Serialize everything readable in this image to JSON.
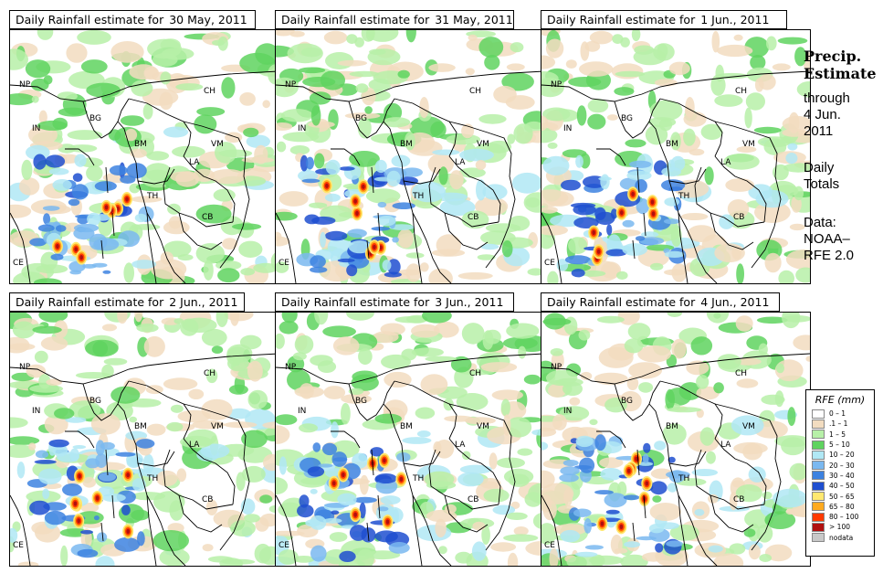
{
  "panels": [
    {
      "title": "Daily Rainfall estimate for",
      "date": "30 May, 2011"
    },
    {
      "title": "Daily Rainfall estimate for",
      "date": "31 May, 2011"
    },
    {
      "title": "Daily Rainfall estimate for",
      "date": "1 Jun., 2011"
    },
    {
      "title": "Daily Rainfall estimate for",
      "date": "2 Jun., 2011"
    },
    {
      "title": "Daily Rainfall estimate for",
      "date": "3 Jun., 2011"
    },
    {
      "title": "Daily Rainfall estimate for",
      "date": "4 Jun., 2011"
    }
  ],
  "country_labels": {
    "NP": "NP",
    "CH": "CH",
    "IN": "IN",
    "BG": "BG",
    "BM": "BM",
    "VM": "VM",
    "LA": "LA",
    "TH": "TH",
    "CB": "CB",
    "CE": "CE"
  },
  "side": {
    "title_line1": "Precip.",
    "title_line2": "Estimate",
    "through": "through",
    "date_line1": "4 Jun.",
    "date_line2": "2011",
    "totals_line1": "Daily",
    "totals_line2": "Totals",
    "data_line1": "Data:",
    "data_line2": "NOAA–",
    "data_line3": "RFE 2.0"
  },
  "legend": {
    "title": "RFE (mm)",
    "items": [
      {
        "label": "0 – 1",
        "color": "#ffffff"
      },
      {
        "label": ".1 – 1",
        "color": "#f2dcc0"
      },
      {
        "label": "1 – 5",
        "color": "#b7f0a8"
      },
      {
        "label": "5 – 10",
        "color": "#5fd35f"
      },
      {
        "label": "10 – 20",
        "color": "#b0e8f5"
      },
      {
        "label": "20 – 30",
        "color": "#7ab8f0"
      },
      {
        "label": "30 – 40",
        "color": "#3d82e0"
      },
      {
        "label": "40 – 50",
        "color": "#1f4fd0"
      },
      {
        "label": "50 – 65",
        "color": "#ffe870"
      },
      {
        "label": "65 – 80",
        "color": "#ffaa20"
      },
      {
        "label": "80 – 100",
        "color": "#ff3a00"
      },
      {
        "label": "> 100",
        "color": "#b01010"
      },
      {
        "label": "nodata",
        "color": "#c8c8c8"
      }
    ]
  }
}
